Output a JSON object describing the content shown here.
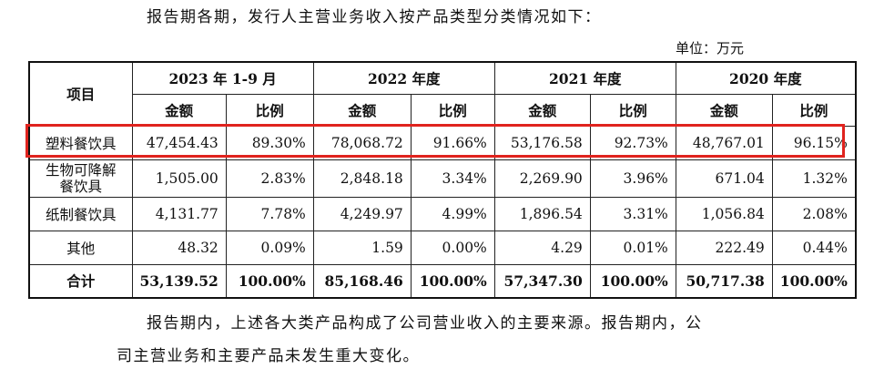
{
  "intro": "报告期各期，发行人主营业务收入按产品类型分类情况如下：",
  "unit": "单位：万元",
  "table": {
    "item_header": "项目",
    "periods": [
      "2023 年 1-9 月",
      "2022 年度",
      "2021 年度",
      "2020 年度"
    ],
    "sub_amount": "金额",
    "sub_ratio": "比例",
    "rows": [
      {
        "label": "塑料餐饮具",
        "cells": [
          "47,454.43",
          "89.30%",
          "78,068.72",
          "91.66%",
          "53,176.58",
          "92.73%",
          "48,767.01",
          "96.15%"
        ]
      },
      {
        "label_line1": "生物可降解",
        "label_line2": "餐饮具",
        "cells": [
          "1,505.00",
          "2.83%",
          "2,848.18",
          "3.34%",
          "2,269.90",
          "3.96%",
          "671.04",
          "1.32%"
        ]
      },
      {
        "label": "纸制餐饮具",
        "cells": [
          "4,131.77",
          "7.78%",
          "4,249.97",
          "4.99%",
          "1,896.54",
          "3.31%",
          "1,056.84",
          "2.08%"
        ]
      },
      {
        "label": "其他",
        "cells": [
          "48.32",
          "0.09%",
          "1.59",
          "0.00%",
          "4.29",
          "0.01%",
          "222.49",
          "0.44%"
        ]
      },
      {
        "label": "合计",
        "cells": [
          "53,139.52",
          "100.00%",
          "85,168.46",
          "100.00%",
          "57,347.30",
          "100.00%",
          "50,717.38",
          "100.00%"
        ]
      }
    ]
  },
  "para1": "报告期内，上述各大类产品构成了公司营业收入的主要来源。报告期内，公",
  "para2": "司主营业务和主要产品未发生重大变化。",
  "highlight_color": "#e0231e"
}
